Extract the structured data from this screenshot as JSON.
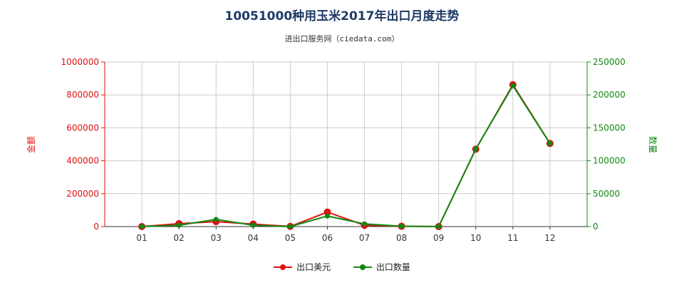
{
  "title": "10051000种用玉米2017年出口月度走势",
  "subtitle": "进出口服务网（ciedata.com）",
  "colors": {
    "amount": "#dd1111",
    "quantity": "#118811",
    "grid": "#cccccc"
  },
  "chart_data": {
    "type": "line",
    "categories": [
      "01",
      "02",
      "03",
      "04",
      "05",
      "06",
      "07",
      "08",
      "09",
      "10",
      "11",
      "12"
    ],
    "y_left": {
      "label": "金额",
      "ylim": [
        0,
        1000000
      ],
      "ticks": [
        "0",
        "200000",
        "400000",
        "600000",
        "800000",
        "1000000"
      ]
    },
    "y_right": {
      "label": "数量",
      "ylim": [
        0,
        250000
      ],
      "ticks": [
        "0",
        "50000",
        "100000",
        "150000",
        "200000",
        "250000"
      ]
    },
    "series": [
      {
        "name": "出口美元",
        "axis": "left",
        "values": [
          0,
          18000,
          30000,
          15000,
          1000,
          88000,
          8000,
          2000,
          0,
          470000,
          862000,
          505000
        ]
      },
      {
        "name": "出口数量",
        "axis": "right",
        "values": [
          0,
          2000,
          11000,
          2000,
          0,
          16000,
          4000,
          500,
          0,
          118000,
          214000,
          126000
        ]
      }
    ],
    "grid": true,
    "legend": "bottom"
  }
}
